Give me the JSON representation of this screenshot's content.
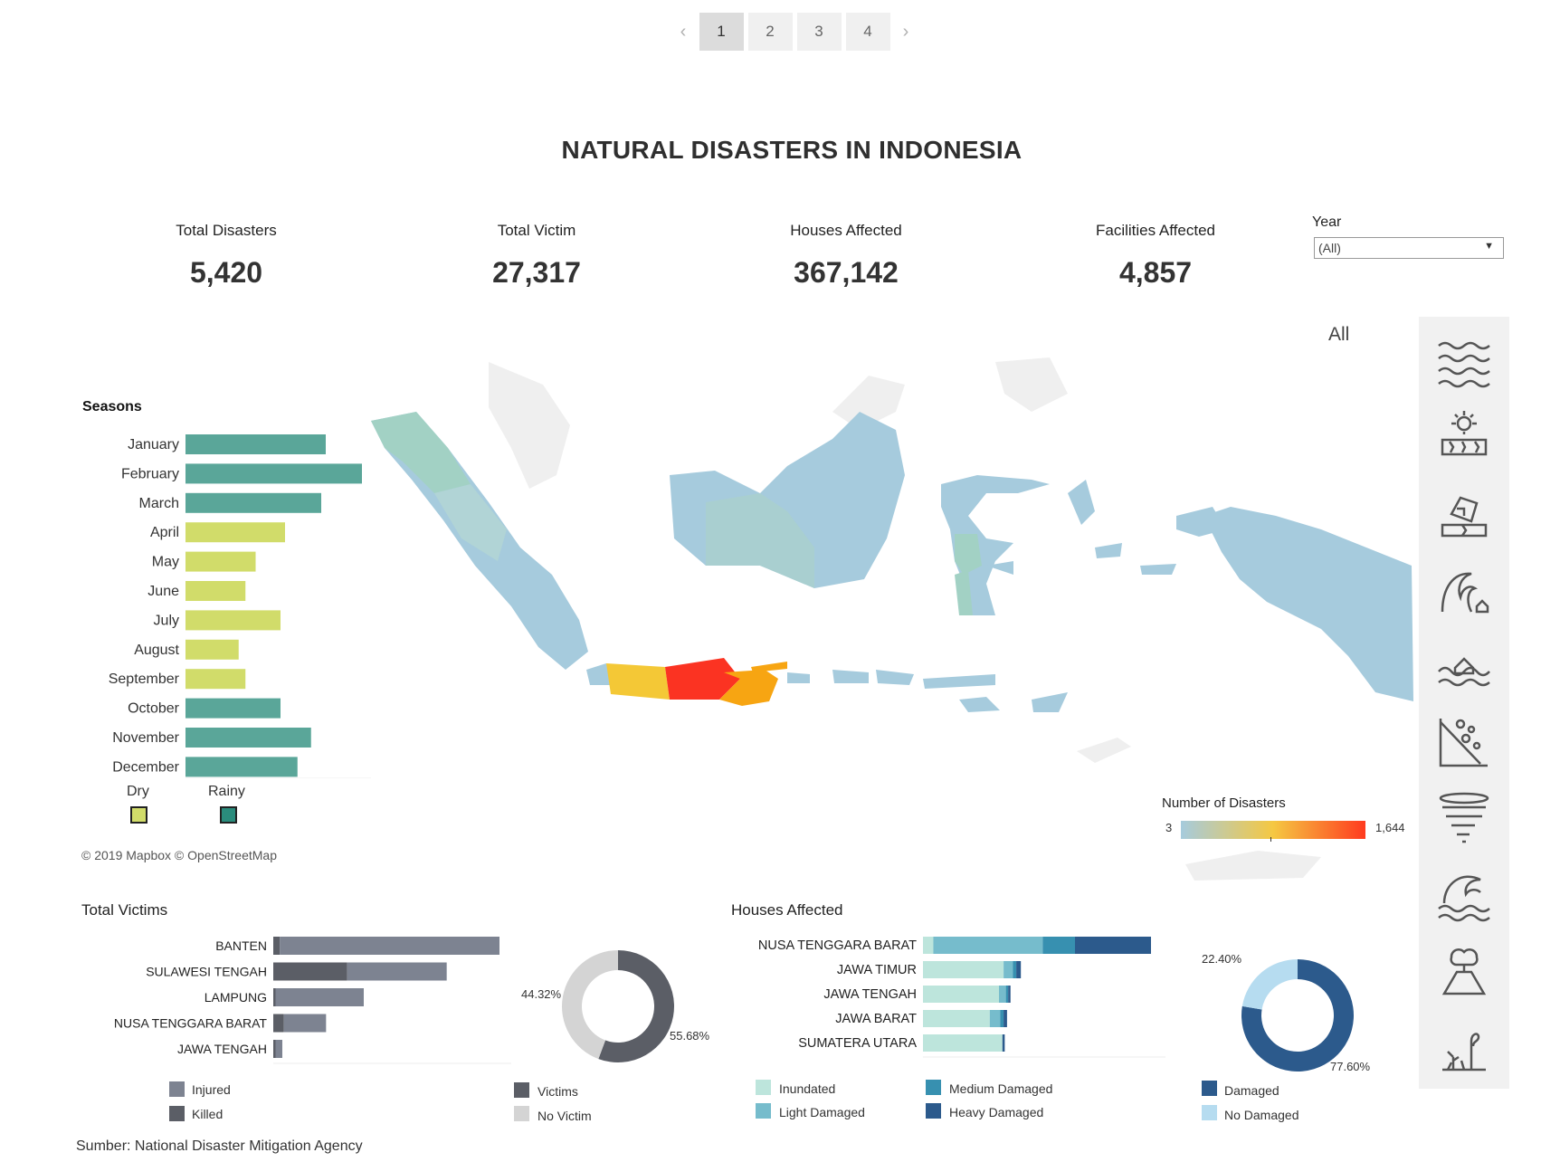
{
  "pager": {
    "prev": "‹",
    "next": "›",
    "pages": [
      "1",
      "2",
      "3",
      "4"
    ],
    "active": "1"
  },
  "title": "NATURAL DISASTERS IN INDONESIA",
  "kpis": [
    {
      "label": "Total Disasters",
      "value": "5,420"
    },
    {
      "label": "Total Victim",
      "value": "27,317"
    },
    {
      "label": "Houses Affected",
      "value": "367,142"
    },
    {
      "label": "Facilities Affected",
      "value": "4,857"
    }
  ],
  "year_filter": {
    "label": "Year",
    "value": "(All)"
  },
  "filter_all": "All",
  "disaster_icons": [
    "flood-icon",
    "drought-icon",
    "earthquake-icon",
    "tsunami-icon",
    "tidal-flood-icon",
    "landslide-icon",
    "tornado-icon",
    "extreme-wave-icon",
    "volcano-eruption-icon",
    "forest-fire-icon"
  ],
  "map": {
    "attribution": "© 2019 Mapbox  © OpenStreetMap",
    "legend_title": "Number of Disasters",
    "legend_min": "3",
    "legend_max": "1,644",
    "colors": {
      "low": "#a6cbdd",
      "mid": "#f5c842",
      "high": "#ff3b1f"
    }
  },
  "colors": {
    "dry": "#d1dc6a",
    "rainy": "#5aa699",
    "injured": "#7d8391",
    "killed": "#5b5e66",
    "victims": "#5b5e66",
    "no_victim": "#d4d4d4",
    "inundated": "#bde5dc",
    "light_damaged": "#76bccc",
    "medium_damaged": "#3790b0",
    "heavy_damaged": "#2c5a8c",
    "damaged": "#2c5a8c",
    "no_damaged": "#b6dcf0"
  },
  "chart_data": [
    {
      "type": "bar",
      "title": "Seasons",
      "categories": [
        "January",
        "February",
        "March",
        "April",
        "May",
        "June",
        "July",
        "August",
        "September",
        "October",
        "November",
        "December"
      ],
      "values": [
        620,
        780,
        600,
        440,
        310,
        265,
        420,
        235,
        265,
        420,
        555,
        495
      ],
      "season": [
        "Rainy",
        "Rainy",
        "Rainy",
        "Dry",
        "Dry",
        "Dry",
        "Dry",
        "Dry",
        "Dry",
        "Rainy",
        "Rainy",
        "Rainy"
      ],
      "legend": [
        "Dry",
        "Rainy"
      ],
      "orientation": "horizontal"
    },
    {
      "type": "bar",
      "title": "Total Victims",
      "stacked": true,
      "categories": [
        "BANTEN",
        "SULAWESI TENGAH",
        "LAMPUNG",
        "NUSA TENGGARA BARAT",
        "JAWA TENGAH"
      ],
      "series": [
        {
          "name": "Killed",
          "values": [
            430,
            4900,
            150,
            700,
            150
          ]
        },
        {
          "name": "Injured",
          "values": [
            14570,
            6600,
            5850,
            2800,
            450
          ]
        }
      ],
      "orientation": "horizontal"
    },
    {
      "type": "pie",
      "donut": true,
      "labels": [
        "Victims",
        "No Victim"
      ],
      "values": [
        55.68,
        44.32
      ],
      "value_labels": [
        "55.68%",
        "44.32%"
      ]
    },
    {
      "type": "bar",
      "title": "Houses Affected",
      "stacked": true,
      "categories": [
        "NUSA TENGGARA BARAT",
        "JAWA TIMUR",
        "JAWA TENGAH",
        "JAWA BARAT",
        "SUMATERA UTARA"
      ],
      "series": [
        {
          "name": "Inundated",
          "values": [
            9000,
            70000,
            66000,
            58000,
            69000
          ]
        },
        {
          "name": "Light Damaged",
          "values": [
            95000,
            8000,
            6000,
            9000,
            0
          ]
        },
        {
          "name": "Medium Damaged",
          "values": [
            28000,
            3000,
            2000,
            3000,
            0
          ]
        },
        {
          "name": "Heavy Damaged",
          "values": [
            66000,
            4000,
            2000,
            3000,
            2000
          ]
        }
      ],
      "orientation": "horizontal"
    },
    {
      "type": "pie",
      "donut": true,
      "labels": [
        "Damaged",
        "No Damaged"
      ],
      "values": [
        77.6,
        22.4
      ],
      "value_labels": [
        "77.60%",
        "22.40%"
      ]
    }
  ],
  "legends": {
    "victims_bar": [
      "Injured",
      "Killed"
    ],
    "victims_pie": [
      "Victims",
      "No Victim"
    ],
    "houses_bar": [
      "Inundated",
      "Medium Damaged",
      "Light Damaged",
      "Heavy Damaged"
    ],
    "houses_pie": [
      "Damaged",
      "No Damaged"
    ]
  },
  "source": "Sumber: National Disaster Mitigation Agency"
}
